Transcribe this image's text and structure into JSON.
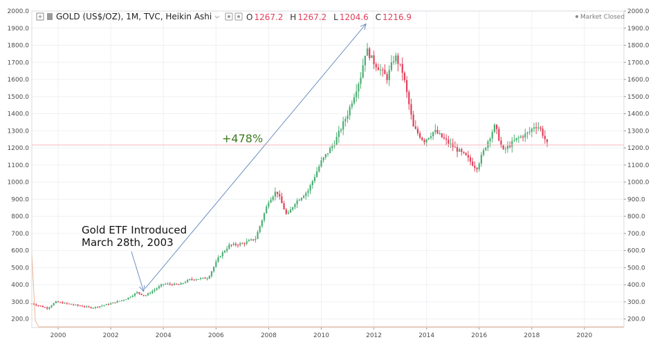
{
  "header": {
    "symbol": "GOLD (US$/OZ), 1M, TVC, Heikin Ashi",
    "open_label": "O",
    "open_value": "1267.2",
    "high_label": "H",
    "high_value": "1267.2",
    "low_label": "L",
    "low_value": "1204.6",
    "close_label": "C",
    "close_value": "1216.9",
    "status": "Market Closed"
  },
  "icons": {
    "expand": "plus-square-icon",
    "series_style": "candlestick-icon",
    "dropdown": "chevron-down-icon",
    "settings": "settings-icon",
    "hide": "eye-icon"
  },
  "colors": {
    "up": "#4caf73",
    "down": "#e0405a",
    "background": "#ffffff",
    "grid": "#eef0f3",
    "axis": "#555555",
    "annotation_arrow": "#6c8ebf",
    "percent_text": "#3c7a1e",
    "price_line": "#f3b6bd",
    "low_line": "#f2b48e"
  },
  "annotations": [
    {
      "id": "etf",
      "lines": [
        "Gold ETF Introduced",
        "March 28th, 2003"
      ],
      "x": 2003.25,
      "y": 345
    },
    {
      "id": "gain",
      "text": "+478%",
      "from": {
        "x": 2003.25,
        "y": 345
      },
      "to": {
        "x": 2011.7,
        "y": 1925
      }
    }
  ],
  "chart_data": {
    "type": "candlestick",
    "style": "Heikin Ashi",
    "interval": "1M",
    "title": "GOLD (US$/OZ), 1M, TVC, Heikin Ashi",
    "xlabel": "",
    "ylabel": "",
    "xlim": [
      1999.0,
      2021.5
    ],
    "ylim": [
      150,
      2000
    ],
    "x_ticks": [
      2000,
      2002,
      2004,
      2006,
      2008,
      2010,
      2012,
      2014,
      2016,
      2018,
      2020
    ],
    "y_ticks": [
      "200.0",
      "300.0",
      "400.0",
      "500.0",
      "600.0",
      "700.0",
      "800.0",
      "900.0",
      "1000.0",
      "1100.0",
      "1200.0",
      "1300.0",
      "1400.0",
      "1500.0",
      "1600.0",
      "1700.0",
      "1800.0",
      "1900.0",
      "2000.0"
    ],
    "last_price": 1216.9,
    "grid": true,
    "anchors": [
      {
        "t": 1999.0,
        "p": 290
      },
      {
        "t": 1999.6,
        "p": 262
      },
      {
        "t": 1999.9,
        "p": 300
      },
      {
        "t": 2000.5,
        "p": 285
      },
      {
        "t": 2001.3,
        "p": 265
      },
      {
        "t": 2002.0,
        "p": 290
      },
      {
        "t": 2002.6,
        "p": 318
      },
      {
        "t": 2003.0,
        "p": 355
      },
      {
        "t": 2003.3,
        "p": 335
      },
      {
        "t": 2004.0,
        "p": 405
      },
      {
        "t": 2004.6,
        "p": 400
      },
      {
        "t": 2005.0,
        "p": 430
      },
      {
        "t": 2005.7,
        "p": 440
      },
      {
        "t": 2006.1,
        "p": 560
      },
      {
        "t": 2006.5,
        "p": 630
      },
      {
        "t": 2007.0,
        "p": 640
      },
      {
        "t": 2007.5,
        "p": 670
      },
      {
        "t": 2008.0,
        "p": 890
      },
      {
        "t": 2008.3,
        "p": 950
      },
      {
        "t": 2008.7,
        "p": 800
      },
      {
        "t": 2009.0,
        "p": 880
      },
      {
        "t": 2009.5,
        "p": 950
      },
      {
        "t": 2010.0,
        "p": 1120
      },
      {
        "t": 2010.5,
        "p": 1230
      },
      {
        "t": 2011.0,
        "p": 1400
      },
      {
        "t": 2011.5,
        "p": 1620
      },
      {
        "t": 2011.7,
        "p": 1780
      },
      {
        "t": 2012.0,
        "p": 1700
      },
      {
        "t": 2012.5,
        "p": 1610
      },
      {
        "t": 2012.8,
        "p": 1740
      },
      {
        "t": 2013.1,
        "p": 1640
      },
      {
        "t": 2013.5,
        "p": 1320
      },
      {
        "t": 2013.9,
        "p": 1240
      },
      {
        "t": 2014.3,
        "p": 1300
      },
      {
        "t": 2014.9,
        "p": 1220
      },
      {
        "t": 2015.5,
        "p": 1150
      },
      {
        "t": 2015.9,
        "p": 1080
      },
      {
        "t": 2016.3,
        "p": 1230
      },
      {
        "t": 2016.6,
        "p": 1330
      },
      {
        "t": 2016.9,
        "p": 1180
      },
      {
        "t": 2017.4,
        "p": 1250
      },
      {
        "t": 2017.9,
        "p": 1290
      },
      {
        "t": 2018.1,
        "p": 1330
      },
      {
        "t": 2018.3,
        "p": 1320
      },
      {
        "t": 2018.6,
        "p": 1216.9
      }
    ]
  }
}
